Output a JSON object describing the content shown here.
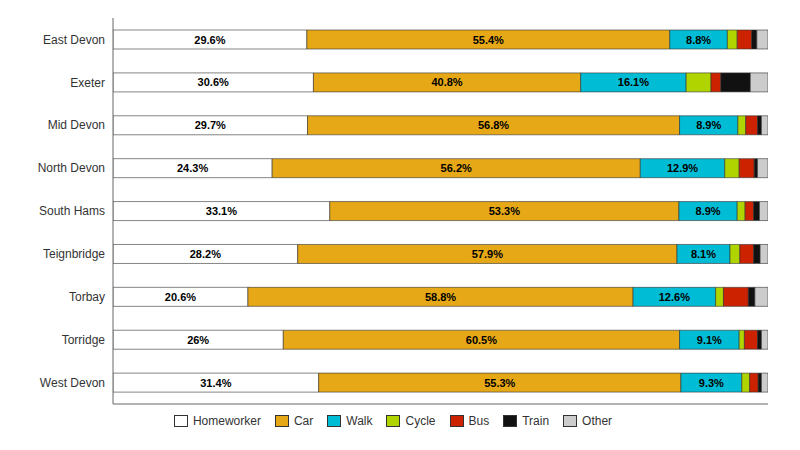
{
  "chart_data": {
    "type": "bar",
    "orientation": "horizontal",
    "stacked": true,
    "categories": [
      "East Devon",
      "Exeter",
      "Mid Devon",
      "North Devon",
      "South Hams",
      "Teignbridge",
      "Torbay",
      "Torridge",
      "West Devon"
    ],
    "series": [
      {
        "name": "Homeworker",
        "color": "#ffffff",
        "values": [
          29.6,
          30.6,
          29.7,
          24.3,
          33.1,
          28.2,
          20.6,
          26.0,
          31.4
        ],
        "value_labels": [
          "29.6%",
          "30.6%",
          "29.7%",
          "24.3%",
          "33.1%",
          "28.2%",
          "20.6%",
          "26%",
          "31.4%"
        ]
      },
      {
        "name": "Car",
        "color": "#e6a817",
        "values": [
          55.4,
          40.8,
          56.8,
          56.2,
          53.3,
          57.9,
          58.8,
          60.5,
          55.3
        ],
        "value_labels": [
          "55.4%",
          "40.8%",
          "56.8%",
          "56.2%",
          "53.3%",
          "57.9%",
          "58.8%",
          "60.5%",
          "55.3%"
        ]
      },
      {
        "name": "Walk",
        "color": "#00bcd4",
        "values": [
          8.8,
          16.1,
          8.9,
          12.9,
          8.9,
          8.1,
          12.6,
          9.1,
          9.3
        ],
        "value_labels": [
          "8.8%",
          "16.1%",
          "8.9%",
          "12.9%",
          "8.9%",
          "8.1%",
          "12.6%",
          "9.1%",
          "9.3%"
        ]
      },
      {
        "name": "Cycle",
        "color": "#b0d400",
        "values": [
          1.5,
          3.8,
          1.2,
          2.2,
          1.2,
          1.5,
          1.2,
          0.8,
          1.2
        ]
      },
      {
        "name": "Bus",
        "color": "#cc2200",
        "values": [
          2.2,
          1.5,
          1.8,
          2.3,
          1.3,
          2.1,
          3.8,
          2.0,
          1.3
        ]
      },
      {
        "name": "Train",
        "color": "#111111",
        "values": [
          0.8,
          4.5,
          0.6,
          0.5,
          0.9,
          1.0,
          1.0,
          0.6,
          0.5
        ]
      },
      {
        "name": "Other",
        "color": "#cccccc",
        "values": [
          1.7,
          2.7,
          1.0,
          1.6,
          1.3,
          1.2,
          2.0,
          1.0,
          1.0
        ]
      }
    ],
    "xlim": [
      0,
      100
    ],
    "tick_labels": "y",
    "data_labels": true,
    "legend": "bottom"
  }
}
